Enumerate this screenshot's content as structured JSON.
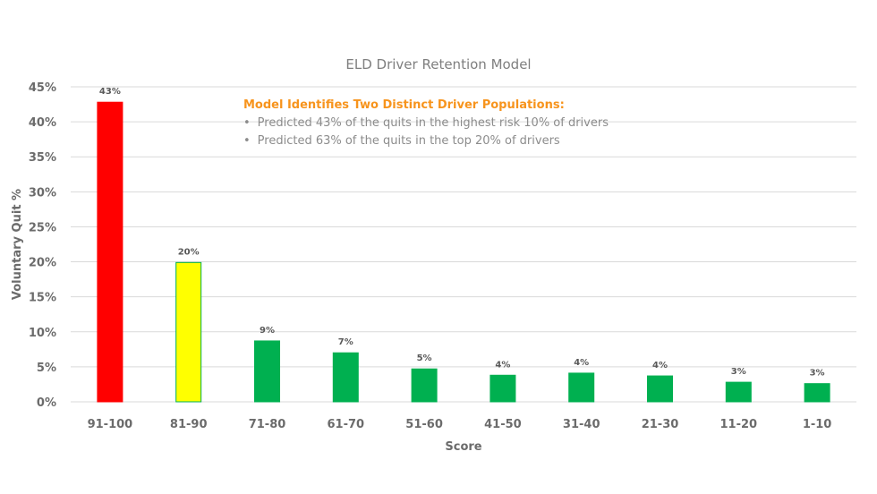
{
  "chart_data": {
    "type": "bar",
    "title": "ELD Driver Retention Model",
    "xlabel": "Score",
    "ylabel": "Voluntary Quit %",
    "ylim": [
      0,
      45
    ],
    "y_ticks": [
      "0%",
      "5%",
      "10%",
      "15%",
      "20%",
      "25%",
      "30%",
      "35%",
      "40%",
      "45%"
    ],
    "y_tick_values": [
      0,
      5,
      10,
      15,
      20,
      25,
      30,
      35,
      40,
      45
    ],
    "grid": true,
    "legend": "none",
    "categories": [
      "91-100",
      "81-90",
      "71-80",
      "61-70",
      "51-60",
      "41-50",
      "31-40",
      "21-30",
      "11-20",
      "1-10"
    ],
    "values": [
      42.8,
      19.9,
      8.7,
      7.0,
      4.7,
      3.8,
      4.1,
      3.7,
      2.8,
      2.6
    ],
    "data_labels": [
      "43%",
      "20%",
      "9%",
      "7%",
      "5%",
      "4%",
      "4%",
      "4%",
      "3%",
      "3%"
    ],
    "bar_colors": [
      "#ff0000",
      "#ffff00",
      "#00b050",
      "#00b050",
      "#00b050",
      "#00b050",
      "#00b050",
      "#00b050",
      "#00b050",
      "#00b050"
    ],
    "bar_outline_colors": [
      "#ff0000",
      "#00b050",
      "#00b050",
      "#00b050",
      "#00b050",
      "#00b050",
      "#00b050",
      "#00b050",
      "#00b050",
      "#00b050"
    ],
    "annotation": {
      "heading": "Model Identifies Two Distinct Driver Populations:",
      "bullets": [
        "Predicted 43% of the quits in the highest risk 10% of drivers",
        "Predicted 63% of the quits in the top 20% of drivers"
      ],
      "bullet_char": "•",
      "heading_color": "#f7941d"
    }
  }
}
